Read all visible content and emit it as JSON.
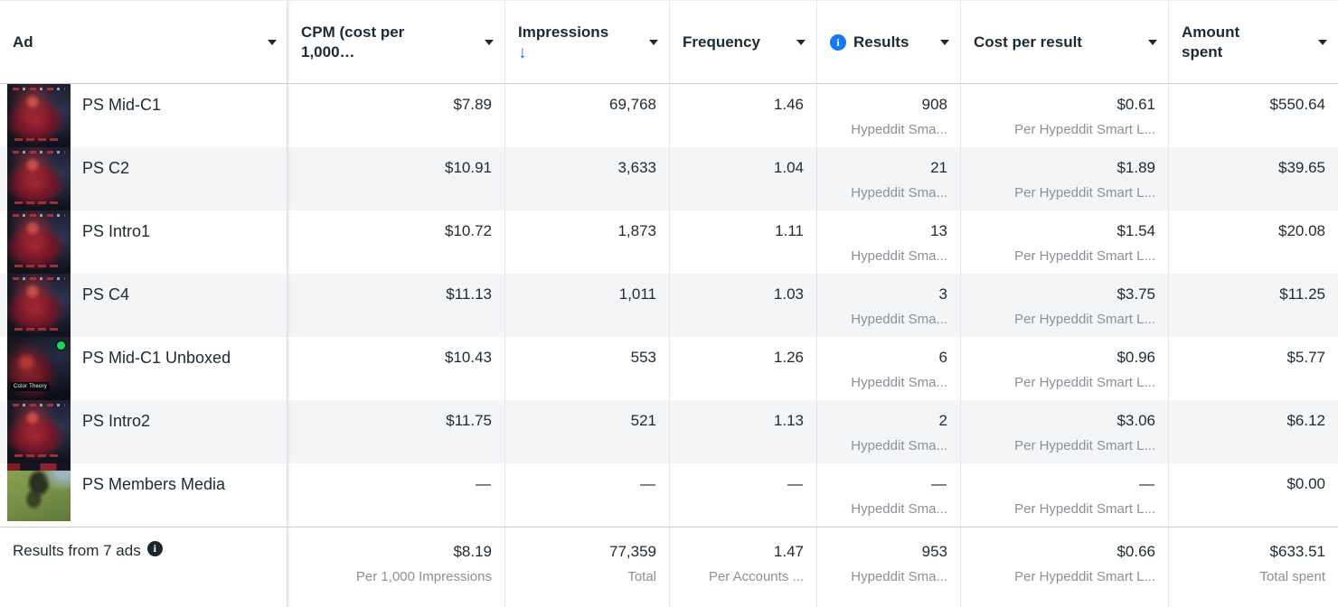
{
  "colors": {
    "accent_blue": "#1b74e4",
    "row_alt": "#f4f5f7",
    "text": "#1c2b33",
    "muted": "#8a9199",
    "spotify_green": "#1ed760"
  },
  "icons": {
    "sort_descending": "↓",
    "info": "i"
  },
  "header": {
    "ad": "Ad",
    "cpm": "CPM (cost per 1,000…",
    "impressions": "Impressions",
    "impressions_sort": "descending",
    "frequency": "Frequency",
    "results": "Results",
    "cost_per_result": "Cost per result",
    "amount_spent": "Amount spent"
  },
  "rows": [
    {
      "name": "PS Mid-C1",
      "cpm": "$7.89",
      "impressions": "69,768",
      "frequency": "1.46",
      "results": "908",
      "results_sub": "Hypeddit Sma...",
      "cost": "$0.61",
      "cost_sub": "Per Hypeddit Smart L...",
      "spent": "$550.64"
    },
    {
      "name": "PS C2",
      "cpm": "$10.91",
      "impressions": "3,633",
      "frequency": "1.04",
      "results": "21",
      "results_sub": "Hypeddit Sma...",
      "cost": "$1.89",
      "cost_sub": "Per Hypeddit Smart L...",
      "spent": "$39.65"
    },
    {
      "name": "PS Intro1",
      "cpm": "$10.72",
      "impressions": "1,873",
      "frequency": "1.11",
      "results": "13",
      "results_sub": "Hypeddit Sma...",
      "cost": "$1.54",
      "cost_sub": "Per Hypeddit Smart L...",
      "spent": "$20.08"
    },
    {
      "name": "PS C4",
      "cpm": "$11.13",
      "impressions": "1,011",
      "frequency": "1.03",
      "results": "3",
      "results_sub": "Hypeddit Sma...",
      "cost": "$3.75",
      "cost_sub": "Per Hypeddit Smart L...",
      "spent": "$11.25"
    },
    {
      "name": "PS Mid-C1 Unboxed",
      "cpm": "$10.43",
      "impressions": "553",
      "frequency": "1.26",
      "results": "6",
      "results_sub": "Hypeddit Sma...",
      "cost": "$0.96",
      "cost_sub": "Per Hypeddit Smart L...",
      "spent": "$5.77",
      "thumb_label": "Color Theory"
    },
    {
      "name": "PS Intro2",
      "cpm": "$11.75",
      "impressions": "521",
      "frequency": "1.13",
      "results": "2",
      "results_sub": "Hypeddit Sma...",
      "cost": "$3.06",
      "cost_sub": "Per Hypeddit Smart L...",
      "spent": "$6.12"
    },
    {
      "name": "PS Members Media",
      "cpm": "—",
      "impressions": "—",
      "frequency": "—",
      "results": "—",
      "results_sub": "Hypeddit Sma...",
      "cost": "—",
      "cost_sub": "Per Hypeddit Smart L...",
      "spent": "$0.00"
    }
  ],
  "footer": {
    "label": "Results from 7 ads",
    "cpm": "$8.19",
    "cpm_sub": "Per 1,000 Impressions",
    "impressions": "77,359",
    "impressions_sub": "Total",
    "frequency": "1.47",
    "frequency_sub": "Per Accounts ...",
    "results": "953",
    "results_sub": "Hypeddit Sma...",
    "cost": "$0.66",
    "cost_sub": "Per Hypeddit Smart L...",
    "spent": "$633.51",
    "spent_sub": "Total spent"
  }
}
